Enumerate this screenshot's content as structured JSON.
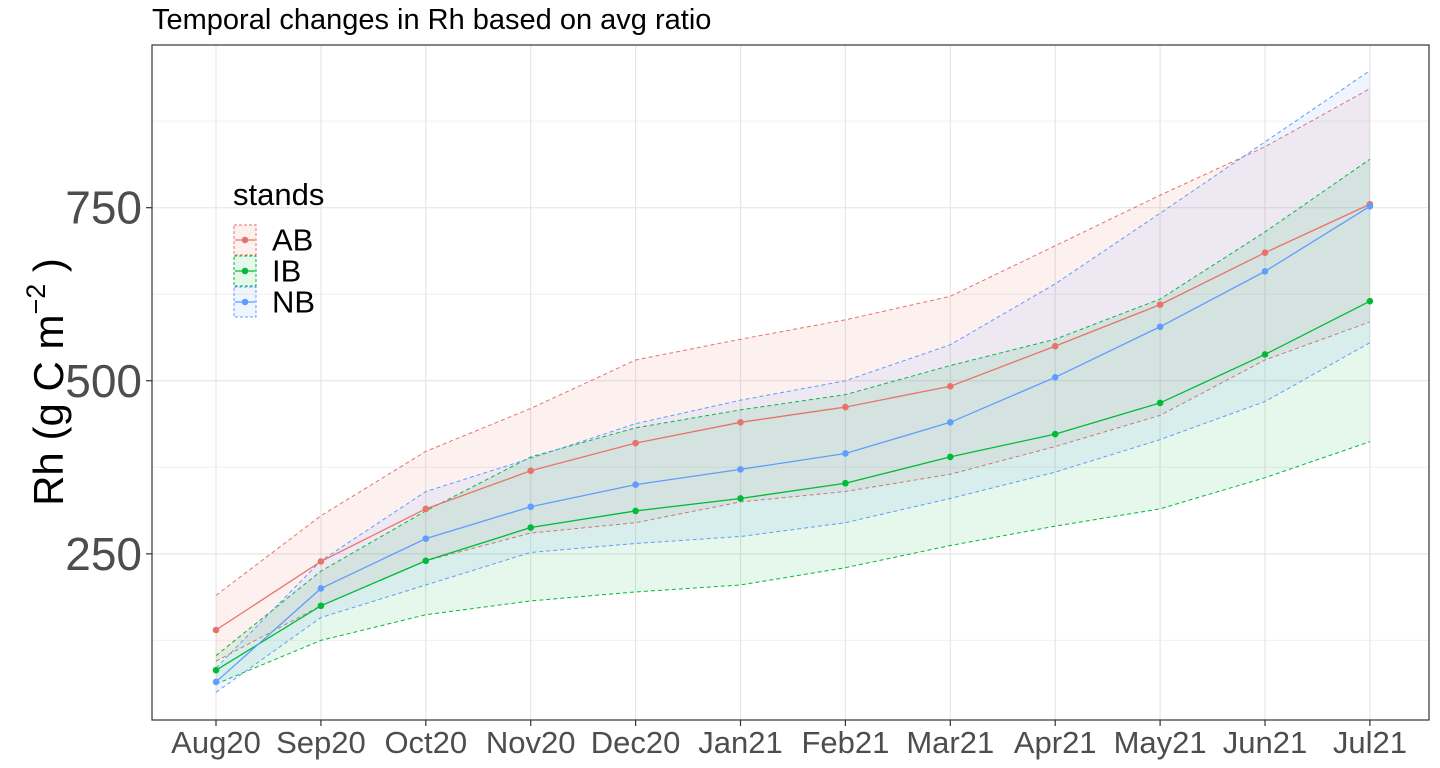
{
  "chart_data": {
    "type": "line",
    "title": "Temporal changes in Rh based on avg ratio",
    "ylabel": {
      "main": "Rh (g C m",
      "superscript": "−2",
      "close": " )"
    },
    "xlabel": "",
    "categories": [
      "Aug20",
      "Sep20",
      "Oct20",
      "Nov20",
      "Dec20",
      "Jan21",
      "Feb21",
      "Mar21",
      "Apr21",
      "May21",
      "Jun21",
      "Jul21"
    ],
    "ylim": [
      10,
      985
    ],
    "yticks": [
      250,
      500,
      750
    ],
    "grid": true,
    "legend": {
      "title": "stands",
      "placement": "top-left"
    },
    "series": [
      {
        "name": "AB",
        "color": "#e8736b",
        "fill": "#fde8e6",
        "values": [
          140,
          239,
          315,
          370,
          410,
          440,
          462,
          492,
          550,
          610,
          685,
          755
        ],
        "lower": [
          95,
          175,
          240,
          280,
          295,
          325,
          340,
          365,
          405,
          450,
          530,
          585
        ],
        "upper": [
          190,
          305,
          398,
          460,
          530,
          560,
          588,
          622,
          695,
          768,
          838,
          922
        ]
      },
      {
        "name": "IB",
        "color": "#00ba38",
        "fill": "#ddf3e6",
        "values": [
          82,
          175,
          240,
          288,
          312,
          330,
          352,
          390,
          423,
          468,
          538,
          615
        ],
        "lower": [
          62,
          125,
          162,
          182,
          195,
          205,
          230,
          262,
          290,
          315,
          360,
          412
        ],
        "upper": [
          103,
          225,
          312,
          390,
          432,
          458,
          480,
          522,
          560,
          618,
          715,
          820
        ]
      },
      {
        "name": "NB",
        "color": "#619cff",
        "fill": "#e1ecfb",
        "values": [
          65,
          200,
          272,
          318,
          350,
          372,
          395,
          440,
          505,
          578,
          658,
          752
        ],
        "lower": [
          50,
          158,
          205,
          252,
          265,
          275,
          295,
          330,
          368,
          415,
          470,
          555
        ],
        "upper": [
          85,
          240,
          340,
          388,
          438,
          472,
          500,
          552,
          640,
          742,
          845,
          948
        ]
      }
    ]
  }
}
